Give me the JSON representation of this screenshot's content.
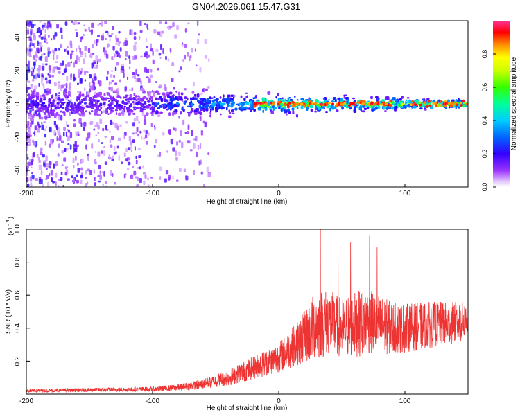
{
  "title": "GN04.2026.061.15.47.G31",
  "chart_data": [
    {
      "type": "heatmap",
      "xlabel": "Height of straight line (km)",
      "ylabel": "Frequency (Hz)",
      "xlim": [
        -200,
        150
      ],
      "ylim": [
        -50,
        50
      ],
      "xticks": [
        -200,
        -100,
        0,
        100
      ],
      "yticks": [
        -40,
        -20,
        0,
        20,
        40
      ],
      "colorbar": {
        "label": "Normalized spectral amplitude",
        "range": [
          0,
          1
        ],
        "ticks": [
          0.0,
          0.2,
          0.4,
          0.6,
          0.8
        ],
        "tick_labels": [
          "0.0",
          "0.2",
          "0.4",
          "0.6",
          "0.8"
        ],
        "colormap": "rainbow (violet-blue-cyan-green-yellow-red-magenta)"
      },
      "description_values": {
        "band_center_hz": 0,
        "band_halfwidth_hz_near_minus200km": 8,
        "band_halfwidth_hz_near_150km": 2,
        "diffuse_noise_extends_to_km": -60,
        "high_amplitude_region_km": [
          -20,
          150
        ]
      },
      "grid": false
    },
    {
      "type": "line",
      "xlabel": "Height of straight line (km)",
      "ylabel": "SNR (10 * v/v)",
      "y_multiplier_label": "(x10",
      "y_multiplier_exp": "4",
      "xlim": [
        -200,
        150
      ],
      "ylim": [
        0,
        1
      ],
      "xticks": [
        -200,
        -100,
        0,
        100
      ],
      "yticks": [
        0.2,
        0.4,
        0.6,
        0.8,
        1.0
      ],
      "ytick_labels": [
        "0.2",
        "0.4",
        "0.6",
        "0.8",
        "1.0"
      ],
      "line_color": "#ee3333",
      "envelope": {
        "x": [
          -200,
          -150,
          -100,
          -80,
          -60,
          -40,
          -20,
          0,
          10,
          20,
          30,
          40,
          50,
          60,
          70,
          80,
          90,
          100,
          120,
          150
        ],
        "y_mean": [
          0.02,
          0.025,
          0.03,
          0.04,
          0.06,
          0.1,
          0.16,
          0.22,
          0.28,
          0.34,
          0.42,
          0.44,
          0.4,
          0.42,
          0.44,
          0.42,
          0.4,
          0.4,
          0.42,
          0.44
        ],
        "y_spread": [
          0.01,
          0.012,
          0.015,
          0.02,
          0.03,
          0.05,
          0.07,
          0.09,
          0.12,
          0.16,
          0.22,
          0.2,
          0.18,
          0.2,
          0.2,
          0.18,
          0.16,
          0.15,
          0.14,
          0.12
        ]
      },
      "peaks": [
        {
          "x": 33,
          "y": 1.0
        },
        {
          "x": 72,
          "y": 0.96
        },
        {
          "x": 57,
          "y": 0.92
        },
        {
          "x": 78,
          "y": 0.89
        },
        {
          "x": 47,
          "y": 0.83
        }
      ],
      "grid": false
    }
  ]
}
